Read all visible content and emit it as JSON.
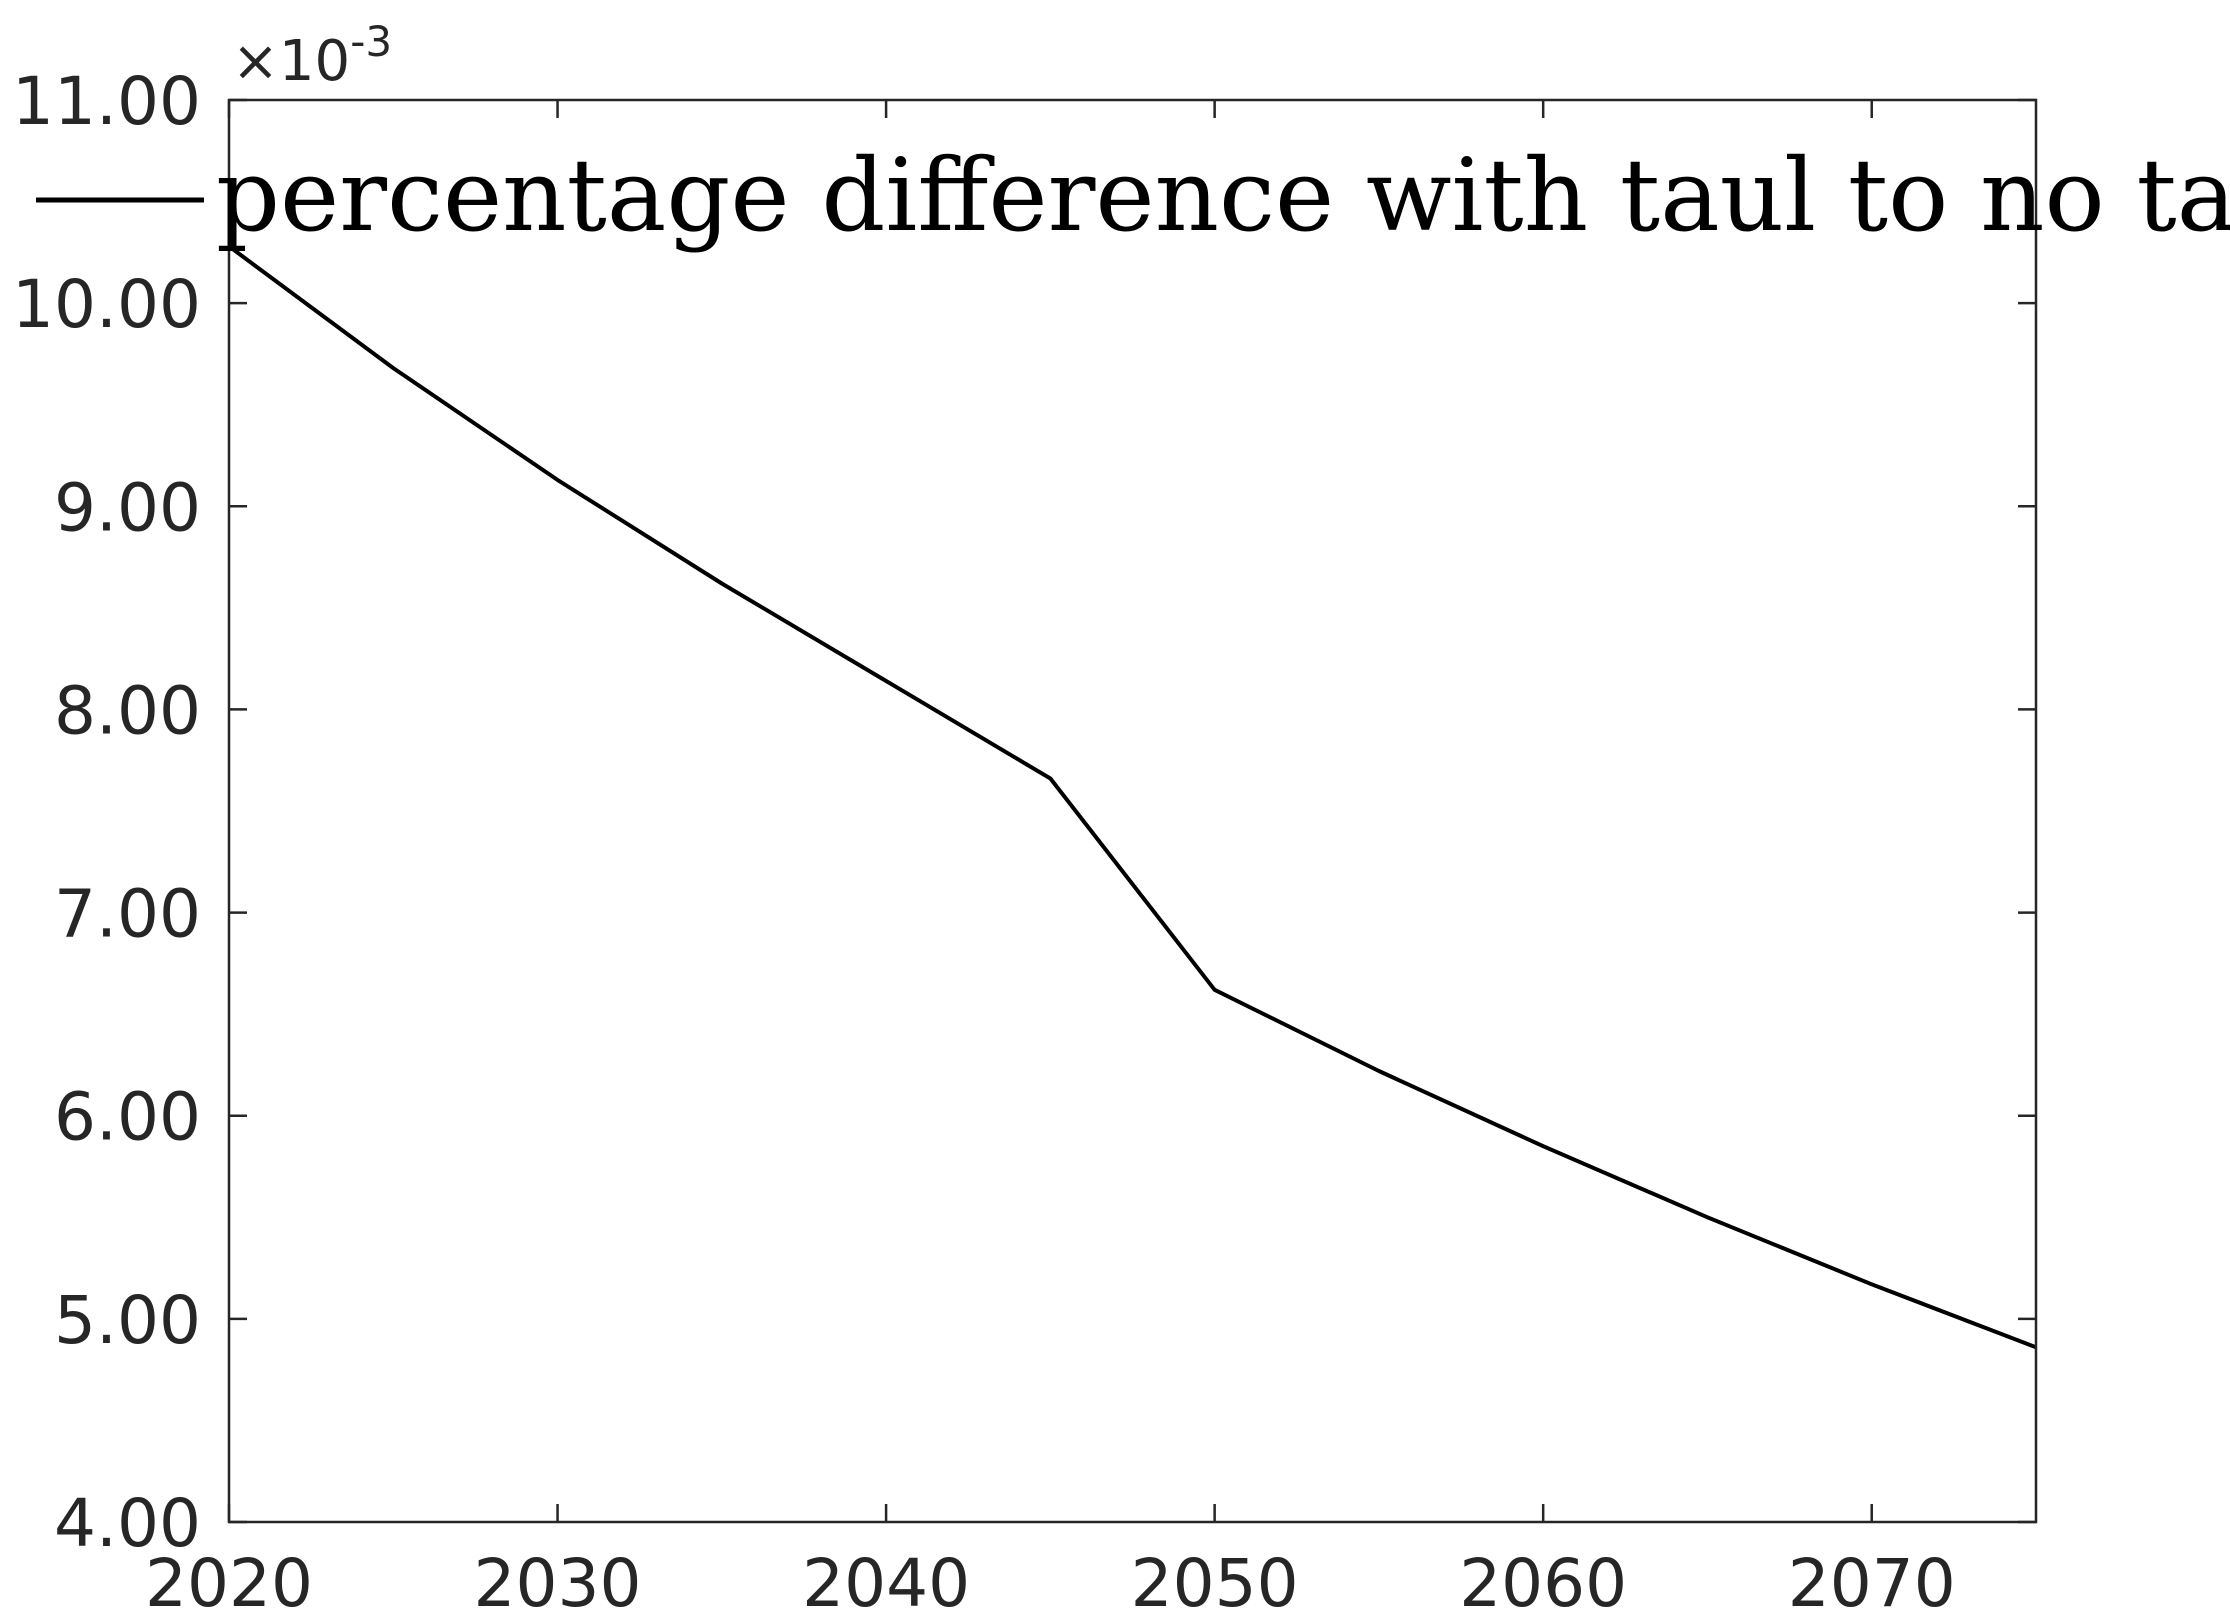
{
  "chart_data": {
    "type": "line",
    "title": "",
    "xlabel": "",
    "ylabel": "",
    "xlim": [
      2020,
      2075
    ],
    "ylim": [
      4.0,
      11.0
    ],
    "y_multiplier_label": "×10",
    "y_multiplier_exponent": "-3",
    "x_ticks": [
      2020,
      2030,
      2040,
      2050,
      2060,
      2070
    ],
    "x_tick_labels": [
      "2020",
      "2030",
      "2040",
      "2050",
      "2060",
      "2070"
    ],
    "y_ticks": [
      4,
      5,
      6,
      7,
      8,
      9,
      10,
      11
    ],
    "y_tick_labels": [
      "4.00",
      "5.00",
      "6.00",
      "7.00",
      "8.00",
      "9.00",
      "10.00",
      "11.00"
    ],
    "grid": false,
    "legend_position": "top",
    "series": [
      {
        "name": "percentage difference with taul to no taul",
        "color": "#000000",
        "x": [
          2020,
          2025,
          2030,
          2035,
          2040,
          2045,
          2050,
          2055,
          2060,
          2065,
          2070,
          2075
        ],
        "y": [
          10.28,
          9.68,
          9.13,
          8.62,
          8.14,
          7.66,
          6.62,
          6.22,
          5.85,
          5.5,
          5.17,
          4.86
        ]
      }
    ]
  }
}
